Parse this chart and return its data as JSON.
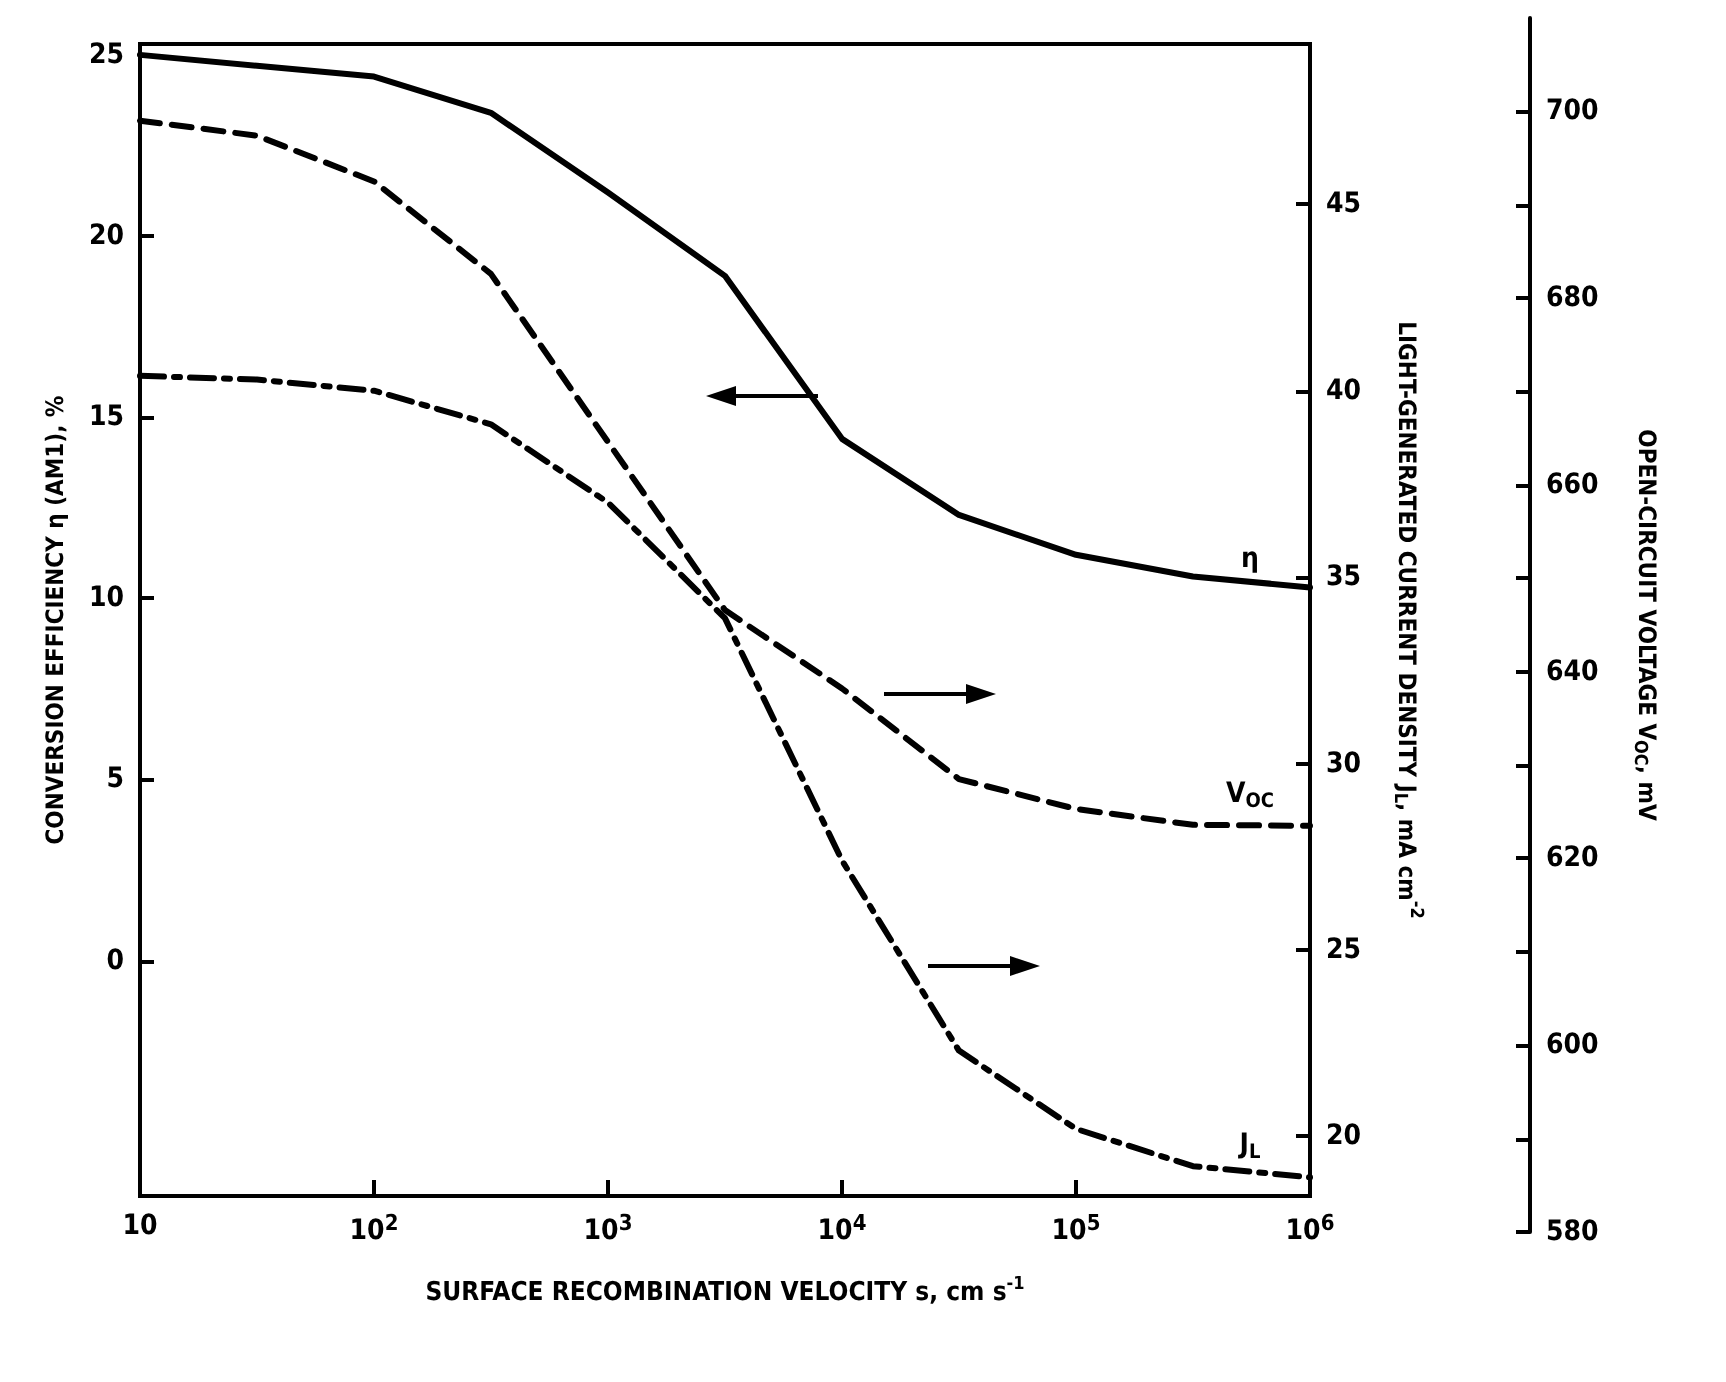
{
  "chart_data": {
    "type": "line",
    "xlabel": "SURFACE RECOMBINATION VELOCITY s, cm s$^{-1}$",
    "ylabel": "CONVERSION EFFICIENCY η (AM1), %",
    "y2label": "LIGHT-GENERATED CURRENT DENSITY J$_{L}$, mA cm$^{-2}$",
    "y3label": "OPEN-CIRCUIT VOLTAGE V$_{OC}$, mV",
    "log": "x",
    "grid": false,
    "legend": false,
    "marker": "none",
    "x": [
      10,
      31.6,
      100,
      316,
      1000,
      3160,
      10000,
      31600,
      100000,
      316000,
      1000000
    ],
    "xlim": [
      10,
      1000000
    ],
    "xticks": [
      10,
      {
        "value": 100,
        "label": "10$^{2}$"
      },
      {
        "value": 1000,
        "label": "10$^{3}$"
      },
      {
        "value": 10000,
        "label": "10$^{4}$"
      },
      {
        "value": 100000,
        "label": "10$^{5}$"
      },
      {
        "value": 1000000,
        "label": "10$^{6}$"
      }
    ],
    "ylim": [
      -6.5,
      25.3
    ],
    "yticks": [
      0,
      5,
      10,
      15,
      20,
      25
    ],
    "y2lim": [
      18.4,
      49.3
    ],
    "y2ticks": [
      20,
      25,
      30,
      35,
      40,
      45
    ],
    "y3lim": [
      580,
      710
    ],
    "y3ticks": [
      580,
      {
        "value": 590,
        "label": null
      },
      600,
      {
        "value": 610,
        "label": null
      },
      620,
      {
        "value": 630,
        "label": null
      },
      640,
      {
        "value": 650,
        "label": null
      },
      660,
      {
        "value": 670,
        "label": null
      },
      680,
      {
        "value": 690,
        "label": null
      },
      700
    ],
    "series": [
      {
        "name": "η",
        "color": "#000000",
        "line_style": "solid",
        "values": [
          25.0,
          24.7,
          24.4,
          23.4,
          21.2,
          18.9,
          14.4,
          12.3,
          11.2,
          10.6,
          10.3
        ]
      },
      {
        "name": "V$_{OC}$",
        "color": "#000000",
        "line_style": "dashed",
        "axis": "y3",
        "values": [
          699,
          697.4,
          692.5,
          682.6,
          664.6,
          646.6,
          638.2,
          628.5,
          625.3,
          623.6,
          623.5
        ]
      },
      {
        "name": "J$_{L}$",
        "color": "#000000",
        "line_style": "dashdot",
        "axis": "y2",
        "values": [
          40.4,
          40.3,
          40.0,
          39.1,
          37.0,
          33.9,
          27.4,
          22.3,
          20.2,
          19.2,
          18.9
        ]
      }
    ]
  }
}
